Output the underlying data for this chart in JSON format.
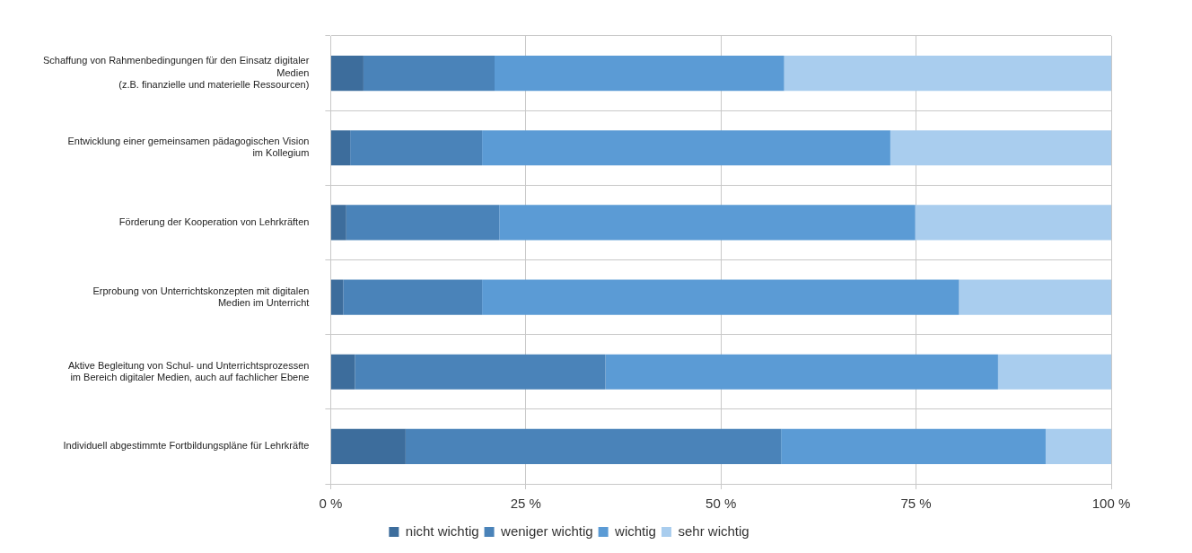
{
  "chart_data": {
    "type": "bar",
    "orientation": "horizontal",
    "stacked": true,
    "categories": [
      "Schaffung von Rahmenbedingungen für den Einsatz digitaler\nMedien\n(z.B. finanzielle und materielle Ressourcen)",
      "Entwicklung einer gemeinsamen pädagogischen Vision\nim Kollegium",
      "Förderung der Kooperation von Lehrkräften",
      "Erprobung von Unterrichtskonzepten mit digitalen\nMedien im Unterricht",
      "Aktive Begleitung von Schul- und Unterrichtsprozessen\nim Bereich digitaler Medien, auch auf fachlicher Ebene",
      "Individuell abgestimmte Fortbildungspläne für Lehrkräfte"
    ],
    "series": [
      {
        "name": "nicht wichtig",
        "color": "#3d6d9c",
        "values": [
          4.2,
          2.5,
          2.0,
          1.6,
          3.1,
          9.6
        ]
      },
      {
        "name": "weniger wichtig",
        "color": "#4a83b9",
        "values": [
          16.8,
          16.9,
          19.6,
          17.8,
          32.1,
          48.1
        ]
      },
      {
        "name": "wichtig",
        "color": "#5b9bd5",
        "values": [
          37.1,
          52.3,
          53.3,
          61.1,
          50.3,
          33.9
        ]
      },
      {
        "name": "sehr wichtig",
        "color": "#a9cdee",
        "values": [
          41.9,
          28.3,
          25.1,
          19.5,
          14.5,
          8.4
        ]
      }
    ],
    "xlim": [
      0,
      100
    ],
    "xticks": [
      {
        "value": 0,
        "label": "0 %"
      },
      {
        "value": 25,
        "label": "25 %"
      },
      {
        "value": 50,
        "label": "50 %"
      },
      {
        "value": 75,
        "label": "75 %"
      },
      {
        "value": 100,
        "label": "100 %"
      }
    ],
    "grid": true,
    "legend": "bottom"
  }
}
